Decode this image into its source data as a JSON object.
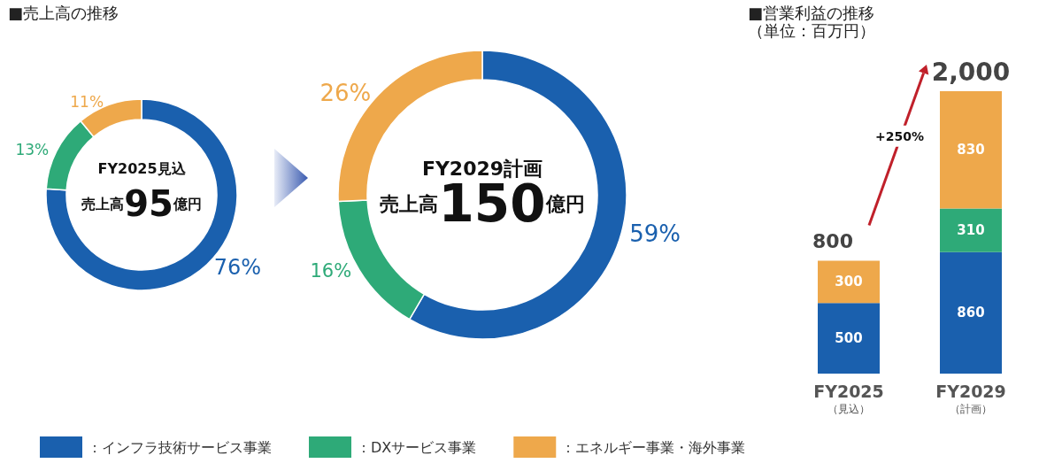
{
  "chart_data": [
    {
      "type": "donut",
      "title": "■売上高の推移",
      "categories": [
        "：インフラ技術サービス事業",
        "：DXサービス事業",
        "：エネルギー事業・海外事業"
      ],
      "values": [
        76,
        13,
        11
      ],
      "colors": [
        "#1a60ae",
        "#2eaa78",
        "#eea84b"
      ],
      "value_labels": [
        "76%",
        "13%",
        "11%"
      ],
      "annotations": [
        "FY2025見込",
        "売上高95億円"
      ],
      "legend": "bottom"
    },
    {
      "type": "donut",
      "categories": [
        null,
        null,
        null
      ],
      "values": [
        59,
        16,
        26
      ],
      "colors": [
        "#1a60ae",
        "#2eaa78",
        "#eea84b"
      ],
      "value_labels": [
        "59%",
        "16%",
        "26%"
      ],
      "annotations": [
        "FY2029計画",
        "売上高150億円"
      ]
    },
    {
      "type": "bar",
      "title": "■営業利益の推移",
      "subtitle": "（単位：百万円）",
      "categories": [
        "FY2025\n（見込）",
        "FY2029\n（計画）"
      ],
      "stacked": true,
      "data_labels": true,
      "tick_labels": "x",
      "totals": [
        "800",
        "2,000"
      ],
      "annotations": [
        "+250%"
      ],
      "series": [
        {
          "color": "#1a60ae",
          "values": [
            500,
            860
          ]
        },
        {
          "color": "#2eaa78",
          "values": [
            null,
            310
          ]
        },
        {
          "color": "#eea84b",
          "values": [
            300,
            830
          ]
        }
      ]
    }
  ]
}
